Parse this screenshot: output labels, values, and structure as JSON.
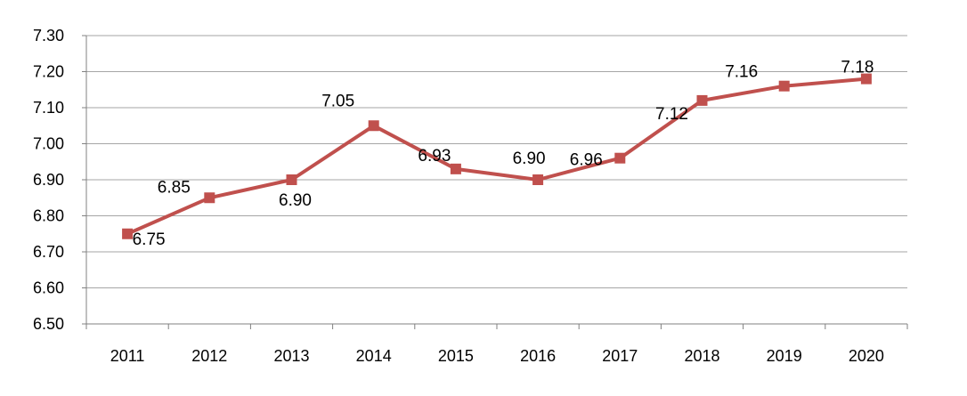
{
  "chart_data": {
    "type": "line",
    "title": "",
    "xlabel": "",
    "ylabel": "",
    "categories": [
      "2011",
      "2012",
      "2013",
      "2014",
      "2015",
      "2016",
      "2017",
      "2018",
      "2019",
      "2020"
    ],
    "series": [
      {
        "values": [
          6.75,
          6.85,
          6.9,
          7.05,
          6.93,
          6.9,
          6.96,
          7.12,
          7.16,
          7.18
        ]
      }
    ],
    "data_labels": [
      "6.75",
      "6.85",
      "6.90",
      "7.05",
      "6.93",
      "6.90",
      "6.96",
      "7.12",
      "7.16",
      "7.18"
    ],
    "ylim": [
      6.5,
      7.3
    ],
    "yticks": [
      "6.50",
      "6.60",
      "6.70",
      "6.80",
      "6.90",
      "7.00",
      "7.10",
      "7.20",
      "7.30"
    ],
    "grid": true,
    "legend": "none",
    "line_color": "#c0504d",
    "grid_color": "#a6a6a6"
  }
}
